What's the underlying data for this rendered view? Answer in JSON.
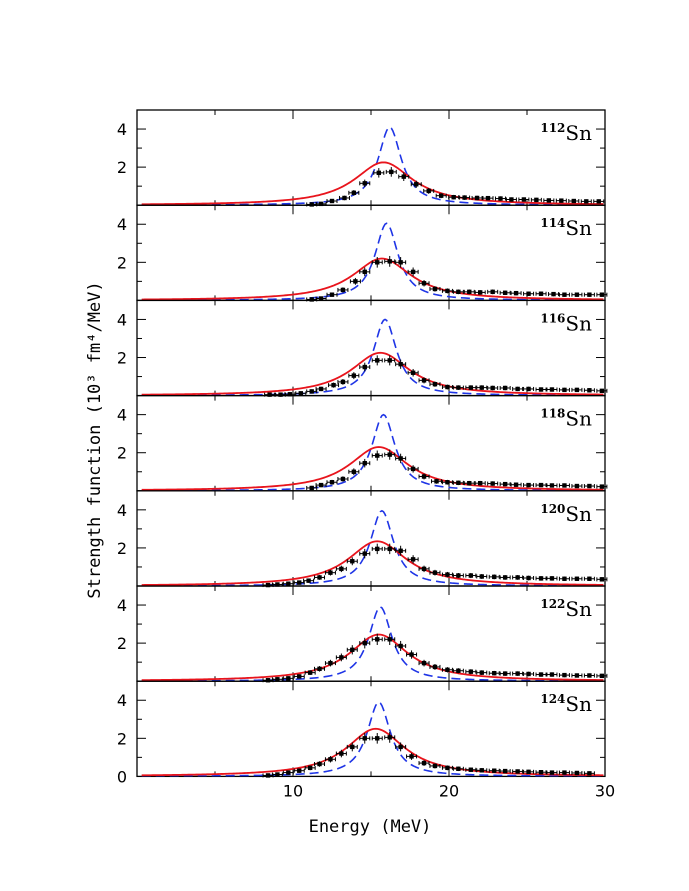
{
  "chart_data": {
    "type": "line",
    "xlabel": "Energy   (MeV)",
    "ylabel": "Strength function (10³ fm⁴/MeV)",
    "xlim": [
      0,
      30
    ],
    "ylim": [
      0,
      5
    ],
    "x_ticks": [
      "10",
      "20",
      "30"
    ],
    "y_ticks": [
      "0",
      "2",
      "4"
    ],
    "series_styles": [
      {
        "style": "dashed",
        "color": "#1f35e6"
      },
      {
        "style": "solid",
        "color": "#e8141c"
      },
      {
        "style": "points-with-errorbars",
        "color": "#000000"
      }
    ],
    "panels": [
      {
        "isotope": "Sn",
        "mass": "112",
        "blue": {
          "center": 16.2,
          "peak": 4.1,
          "gamma": 1.8
        },
        "red": {
          "center": 15.8,
          "peak": 2.25,
          "gamma": 4.6
        },
        "points": [
          [
            11.2,
            0.04
          ],
          [
            11.8,
            0.07
          ],
          [
            12.5,
            0.22
          ],
          [
            13.3,
            0.38
          ],
          [
            13.9,
            0.65
          ],
          [
            14.6,
            1.15
          ],
          [
            15.5,
            1.7
          ],
          [
            16.3,
            1.75
          ],
          [
            17.1,
            1.5
          ],
          [
            17.9,
            1.1
          ],
          [
            18.7,
            0.75
          ],
          [
            19.5,
            0.5
          ],
          [
            20.3,
            0.42
          ],
          [
            21.0,
            0.4
          ],
          [
            21.8,
            0.38
          ],
          [
            22.5,
            0.37
          ],
          [
            23.3,
            0.35
          ],
          [
            24.0,
            0.3
          ],
          [
            24.8,
            0.3
          ],
          [
            25.6,
            0.28
          ],
          [
            26.4,
            0.25
          ],
          [
            27.2,
            0.24
          ],
          [
            28.0,
            0.22
          ],
          [
            28.8,
            0.2
          ],
          [
            29.6,
            0.2
          ]
        ]
      },
      {
        "isotope": "Sn",
        "mass": "114",
        "blue": {
          "center": 16.0,
          "peak": 4.05,
          "gamma": 1.8
        },
        "red": {
          "center": 15.7,
          "peak": 2.2,
          "gamma": 4.6
        },
        "points": [
          [
            11.2,
            0.05
          ],
          [
            11.8,
            0.1
          ],
          [
            12.5,
            0.3
          ],
          [
            13.2,
            0.55
          ],
          [
            14.0,
            1.0
          ],
          [
            14.6,
            1.5
          ],
          [
            15.4,
            2.0
          ],
          [
            16.2,
            2.05
          ],
          [
            16.9,
            2.0
          ],
          [
            17.7,
            1.5
          ],
          [
            18.4,
            0.9
          ],
          [
            19.1,
            0.6
          ],
          [
            19.9,
            0.5
          ],
          [
            20.6,
            0.45
          ],
          [
            21.3,
            0.45
          ],
          [
            22.0,
            0.42
          ],
          [
            22.8,
            0.45
          ],
          [
            23.6,
            0.4
          ],
          [
            24.3,
            0.38
          ],
          [
            25.1,
            0.35
          ],
          [
            25.9,
            0.35
          ],
          [
            26.7,
            0.33
          ],
          [
            27.4,
            0.3
          ],
          [
            28.2,
            0.3
          ],
          [
            29.0,
            0.3
          ],
          [
            29.8,
            0.3
          ]
        ]
      },
      {
        "isotope": "Sn",
        "mass": "116",
        "blue": {
          "center": 15.9,
          "peak": 4.0,
          "gamma": 1.8
        },
        "red": {
          "center": 15.6,
          "peak": 2.25,
          "gamma": 4.6
        },
        "points": [
          [
            8.5,
            0.05
          ],
          [
            9.2,
            0.05
          ],
          [
            9.8,
            0.07
          ],
          [
            10.5,
            0.12
          ],
          [
            11.2,
            0.22
          ],
          [
            11.8,
            0.35
          ],
          [
            12.6,
            0.55
          ],
          [
            13.2,
            0.72
          ],
          [
            13.9,
            1.05
          ],
          [
            14.6,
            1.5
          ],
          [
            15.4,
            1.85
          ],
          [
            16.2,
            1.85
          ],
          [
            16.9,
            1.65
          ],
          [
            17.7,
            1.2
          ],
          [
            18.4,
            0.8
          ],
          [
            19.1,
            0.6
          ],
          [
            19.9,
            0.45
          ],
          [
            20.6,
            0.42
          ],
          [
            21.4,
            0.42
          ],
          [
            22.1,
            0.42
          ],
          [
            22.8,
            0.4
          ],
          [
            23.6,
            0.4
          ],
          [
            24.4,
            0.35
          ],
          [
            25.1,
            0.35
          ],
          [
            25.9,
            0.32
          ],
          [
            26.6,
            0.32
          ],
          [
            27.4,
            0.3
          ],
          [
            28.2,
            0.3
          ],
          [
            29.0,
            0.28
          ],
          [
            29.8,
            0.25
          ]
        ]
      },
      {
        "isotope": "Sn",
        "mass": "118",
        "blue": {
          "center": 15.8,
          "peak": 4.0,
          "gamma": 1.8
        },
        "red": {
          "center": 15.5,
          "peak": 2.3,
          "gamma": 4.6
        },
        "points": [
          [
            11.2,
            0.15
          ],
          [
            11.8,
            0.3
          ],
          [
            12.5,
            0.45
          ],
          [
            13.2,
            0.62
          ],
          [
            13.9,
            1.0
          ],
          [
            14.6,
            1.45
          ],
          [
            15.4,
            1.85
          ],
          [
            16.2,
            1.9
          ],
          [
            16.9,
            1.7
          ],
          [
            17.7,
            1.15
          ],
          [
            18.4,
            0.75
          ],
          [
            19.2,
            0.5
          ],
          [
            19.9,
            0.45
          ],
          [
            20.6,
            0.42
          ],
          [
            21.3,
            0.4
          ],
          [
            22.0,
            0.4
          ],
          [
            22.8,
            0.38
          ],
          [
            23.6,
            0.35
          ],
          [
            24.3,
            0.32
          ],
          [
            25.1,
            0.3
          ],
          [
            25.9,
            0.3
          ],
          [
            26.6,
            0.28
          ],
          [
            27.4,
            0.28
          ],
          [
            28.2,
            0.25
          ],
          [
            29.0,
            0.25
          ],
          [
            29.8,
            0.22
          ]
        ]
      },
      {
        "isotope": "Sn",
        "mass": "120",
        "blue": {
          "center": 15.7,
          "peak": 3.95,
          "gamma": 1.8
        },
        "red": {
          "center": 15.4,
          "peak": 2.35,
          "gamma": 4.6
        },
        "points": [
          [
            8.4,
            0.05
          ],
          [
            9.0,
            0.08
          ],
          [
            9.7,
            0.12
          ],
          [
            10.4,
            0.18
          ],
          [
            11.0,
            0.28
          ],
          [
            11.7,
            0.45
          ],
          [
            12.4,
            0.7
          ],
          [
            13.1,
            0.9
          ],
          [
            13.8,
            1.3
          ],
          [
            14.6,
            1.7
          ],
          [
            15.4,
            1.95
          ],
          [
            16.2,
            1.95
          ],
          [
            16.9,
            1.85
          ],
          [
            17.7,
            1.4
          ],
          [
            18.4,
            0.9
          ],
          [
            19.1,
            0.7
          ],
          [
            19.9,
            0.6
          ],
          [
            20.6,
            0.55
          ],
          [
            21.4,
            0.55
          ],
          [
            22.1,
            0.5
          ],
          [
            22.9,
            0.48
          ],
          [
            23.6,
            0.45
          ],
          [
            24.4,
            0.45
          ],
          [
            25.1,
            0.42
          ],
          [
            25.9,
            0.4
          ],
          [
            26.6,
            0.4
          ],
          [
            27.4,
            0.38
          ],
          [
            28.2,
            0.38
          ],
          [
            29.0,
            0.38
          ],
          [
            29.8,
            0.35
          ]
        ]
      },
      {
        "isotope": "Sn",
        "mass": "122",
        "blue": {
          "center": 15.6,
          "peak": 3.9,
          "gamma": 1.8
        },
        "red": {
          "center": 15.5,
          "peak": 2.45,
          "gamma": 4.6
        },
        "points": [
          [
            8.4,
            0.05
          ],
          [
            9.0,
            0.1
          ],
          [
            9.7,
            0.15
          ],
          [
            10.4,
            0.25
          ],
          [
            11.1,
            0.45
          ],
          [
            11.7,
            0.65
          ],
          [
            12.4,
            0.95
          ],
          [
            13.1,
            1.25
          ],
          [
            13.8,
            1.65
          ],
          [
            14.6,
            2.0
          ],
          [
            15.4,
            2.2
          ],
          [
            16.2,
            2.2
          ],
          [
            16.9,
            1.85
          ],
          [
            17.6,
            1.4
          ],
          [
            18.4,
            0.95
          ],
          [
            19.1,
            0.75
          ],
          [
            19.9,
            0.6
          ],
          [
            20.6,
            0.55
          ],
          [
            21.4,
            0.5
          ],
          [
            22.1,
            0.45
          ],
          [
            22.9,
            0.42
          ],
          [
            23.6,
            0.4
          ],
          [
            24.4,
            0.4
          ],
          [
            25.1,
            0.38
          ],
          [
            25.9,
            0.35
          ],
          [
            26.6,
            0.35
          ],
          [
            27.4,
            0.32
          ],
          [
            28.2,
            0.3
          ],
          [
            29.0,
            0.3
          ],
          [
            29.8,
            0.28
          ]
        ]
      },
      {
        "isotope": "Sn",
        "mass": "124",
        "blue": {
          "center": 15.5,
          "peak": 3.9,
          "gamma": 1.8
        },
        "red": {
          "center": 15.3,
          "peak": 2.5,
          "gamma": 4.6
        },
        "points": [
          [
            8.4,
            0.05
          ],
          [
            9.0,
            0.1
          ],
          [
            9.7,
            0.2
          ],
          [
            10.4,
            0.3
          ],
          [
            11.1,
            0.45
          ],
          [
            11.7,
            0.65
          ],
          [
            12.4,
            0.9
          ],
          [
            13.1,
            1.2
          ],
          [
            13.8,
            1.55
          ],
          [
            14.6,
            2.0
          ],
          [
            15.4,
            2.0
          ],
          [
            16.2,
            2.05
          ],
          [
            16.9,
            1.55
          ],
          [
            17.6,
            1.05
          ],
          [
            18.4,
            0.7
          ],
          [
            19.1,
            0.55
          ],
          [
            19.9,
            0.45
          ],
          [
            20.6,
            0.4
          ],
          [
            21.4,
            0.35
          ],
          [
            22.1,
            0.32
          ],
          [
            22.9,
            0.3
          ],
          [
            23.6,
            0.28
          ],
          [
            24.4,
            0.26
          ],
          [
            25.1,
            0.24
          ],
          [
            25.9,
            0.22
          ],
          [
            26.6,
            0.2
          ],
          [
            27.4,
            0.2
          ],
          [
            28.2,
            0.18
          ],
          [
            29.0,
            0.16
          ]
        ]
      }
    ]
  }
}
